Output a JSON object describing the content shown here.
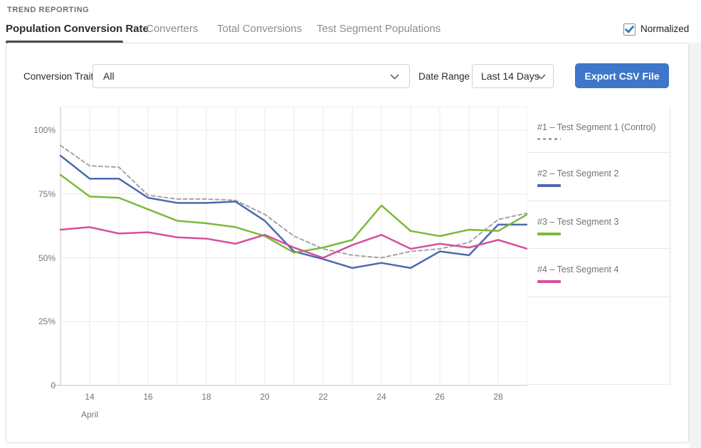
{
  "header": {
    "eyebrow": "TREND REPORTING",
    "tabs": [
      {
        "label": "Population Conversion Rate",
        "active": true
      },
      {
        "label": "Converters",
        "active": false
      },
      {
        "label": "Total Conversions",
        "active": false
      },
      {
        "label": "Test Segment Populations",
        "active": false
      }
    ],
    "normalized_label": "Normalized",
    "normalized_checked": true
  },
  "filters": {
    "conversion_trait_label": "Conversion Trait",
    "conversion_trait_value": "All",
    "date_range_label": "Date Range",
    "date_range_value": "Last 14 Days",
    "export_button_label": "Export CSV File"
  },
  "chart_data": {
    "type": "line",
    "x": [
      13,
      14,
      15,
      16,
      17,
      18,
      19,
      20,
      21,
      22,
      23,
      24,
      25,
      26,
      27,
      28,
      29
    ],
    "x_ticks": [
      14,
      16,
      18,
      20,
      22,
      24,
      26,
      28
    ],
    "xlabel": "April",
    "y_ticks": [
      "0",
      "25%",
      "50%",
      "75%",
      "100%"
    ],
    "y_tick_values": [
      0,
      25,
      50,
      75,
      100
    ],
    "ylim": [
      0,
      109
    ],
    "grid": true,
    "legend_position": "right",
    "series": [
      {
        "name": "#1 – Test Segment 1  (Control)",
        "color": "#a4a4a9",
        "dashed": true,
        "values": [
          94,
          86,
          85.5,
          74.5,
          73,
          73,
          72.5,
          67,
          58.5,
          53.5,
          51,
          50,
          52.5,
          53.5,
          56,
          65,
          67.5
        ]
      },
      {
        "name": "#2 – Test Segment 2",
        "color": "#4b6aae",
        "dashed": false,
        "values": [
          90,
          81,
          81,
          73.5,
          71.5,
          71.5,
          72,
          64.5,
          52.5,
          49.5,
          46,
          48,
          46,
          52.5,
          51,
          63,
          63
        ]
      },
      {
        "name": "#3 – Test Segment 3",
        "color": "#7bba3c",
        "dashed": false,
        "values": [
          82.5,
          74,
          73.5,
          69,
          64.5,
          63.5,
          62,
          58.5,
          52,
          54,
          57,
          70.5,
          60.5,
          58.5,
          61,
          60.5,
          67
        ]
      },
      {
        "name": "#4 – Test Segment 4",
        "color": "#d4509d",
        "dashed": false,
        "values": [
          61,
          62,
          59.5,
          60,
          58,
          57.5,
          55.5,
          59,
          54,
          50,
          55,
          59,
          53.5,
          55.5,
          54,
          57,
          53.5
        ]
      }
    ]
  },
  "colors": {
    "accent_blue": "#3e76c9",
    "checkbox_check": "#2d6fc2",
    "active_tab_underline": "#4a4a4a",
    "gridline": "#e9e9e9",
    "axis_line": "#c7c7c7"
  }
}
